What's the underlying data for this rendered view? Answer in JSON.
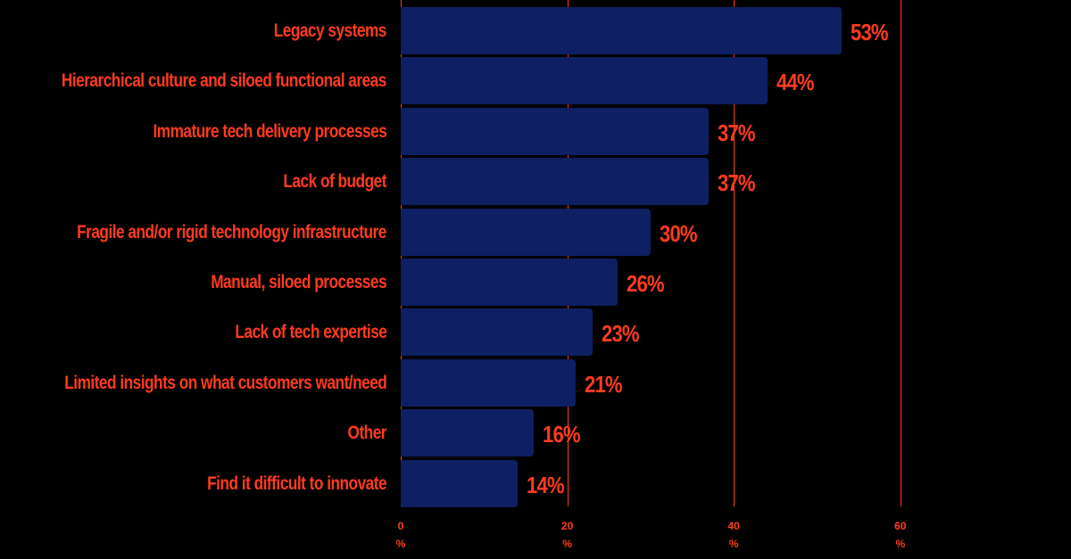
{
  "chart_data": {
    "type": "bar",
    "orientation": "horizontal",
    "title": "",
    "xlabel": "",
    "ylabel": "",
    "categories": [
      "Legacy systems",
      "Hierarchical culture and siloed functional areas",
      "Immature tech delivery processes",
      "Lack of budget",
      "Fragile and/or rigid technology infrastructure",
      "Manual, siloed processes",
      "Lack of tech expertise",
      "Limited insights on what customers want/need",
      "Other",
      "Find it difficult to innovate"
    ],
    "values": [
      53,
      44,
      37,
      37,
      30,
      26,
      23,
      21,
      16,
      14
    ],
    "value_labels": [
      "53%",
      "44%",
      "37%",
      "37%",
      "30%",
      "26%",
      "23%",
      "21%",
      "16%",
      "14%"
    ],
    "xlim": [
      0,
      60
    ],
    "x_ticks": [
      {
        "value": "0",
        "unit": "%"
      },
      {
        "value": "20",
        "unit": "%"
      },
      {
        "value": "40",
        "unit": "%"
      },
      {
        "value": "60",
        "unit": "%"
      }
    ],
    "grid": true,
    "legend": null,
    "colors": {
      "bar": "#0f1f63",
      "text": "#ff3b1f",
      "grid": "#ff3b1f",
      "background": "#000000"
    }
  }
}
